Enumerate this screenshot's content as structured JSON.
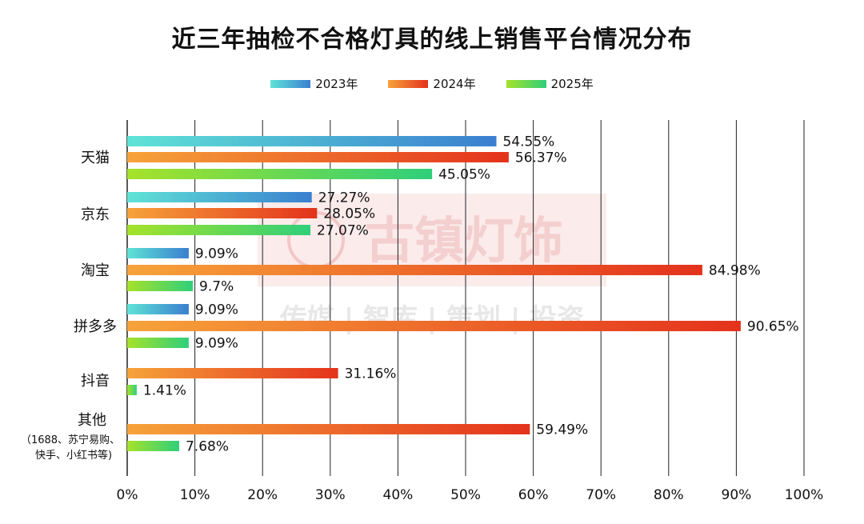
{
  "chart_data": {
    "type": "bar",
    "orientation": "horizontal",
    "title": "近三年抽检不合格灯具的线上销售平台情况分布",
    "categories": [
      "天猫",
      "京东",
      "淘宝",
      "拼多多",
      "抖音",
      "其他"
    ],
    "category_notes": [
      "",
      "",
      "",
      "",
      "",
      "（1688、苏宁易购、快手、小红书等)"
    ],
    "series": [
      {
        "name": "2023年",
        "values": [
          54.55,
          27.27,
          9.09,
          9.09,
          null,
          null
        ],
        "labels": [
          "54.55%",
          "27.27%",
          "9.09%",
          "9.09%",
          "",
          ""
        ]
      },
      {
        "name": "2024年",
        "values": [
          56.37,
          28.05,
          84.98,
          90.65,
          31.16,
          59.49
        ],
        "labels": [
          "56.37%",
          "28.05%",
          "84.98%",
          "90.65%",
          "31.16%",
          "59.49%"
        ]
      },
      {
        "name": "2025年",
        "values": [
          45.05,
          27.07,
          9.7,
          9.09,
          1.41,
          7.68
        ],
        "labels": [
          "45.05%",
          "27.07%",
          "9.7%",
          "9.09%",
          "1.41%",
          "7.68%"
        ]
      }
    ],
    "xlim": [
      0,
      100
    ],
    "xticks": [
      0,
      10,
      20,
      30,
      40,
      50,
      60,
      70,
      80,
      90,
      100
    ],
    "xtick_labels": [
      "0%",
      "10%",
      "20%",
      "30%",
      "40%",
      "50%",
      "60%",
      "70%",
      "80%",
      "90%",
      "100%"
    ],
    "grid": true,
    "legend_position": "top-center"
  },
  "colors": {
    "s2023": [
      "#5fe3d6",
      "#3a7fd0"
    ],
    "s2024": [
      "#f6a33a",
      "#e4321c"
    ],
    "s2025": [
      "#a6e22a",
      "#2fcf7a"
    ],
    "grid": "#222222"
  },
  "watermark": {
    "logo_text": "古镇灯饰",
    "tagline": "传媒 | 智库 | 策划 | 投资"
  }
}
